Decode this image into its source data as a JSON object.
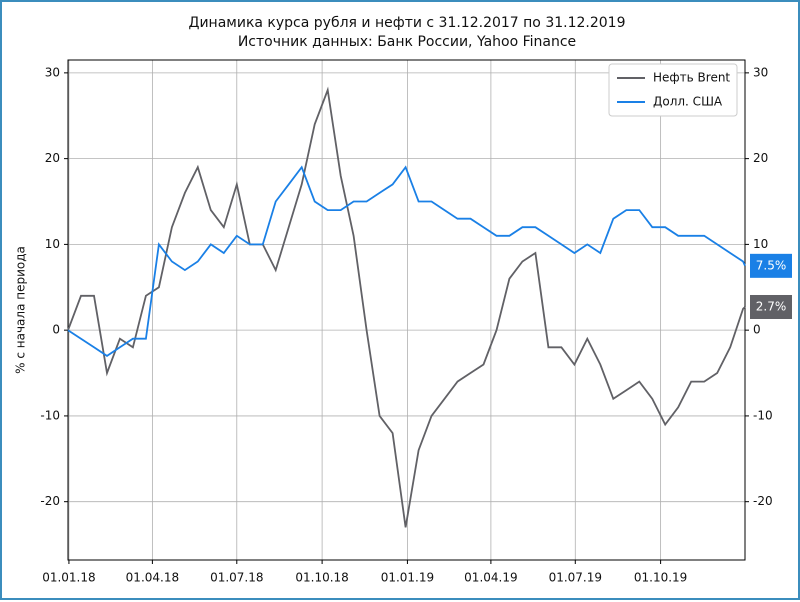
{
  "chart_data": {
    "type": "line",
    "title": "Динамика курса рубля и нефти с 31.12.2017 по 31.12.2019",
    "subtitle": "Источник данных: Банк России, Yahoo Finance",
    "y_label": "% с начала периода",
    "x": [
      "31.12.17",
      "14.01.18",
      "28.01.18",
      "11.02.18",
      "25.02.18",
      "11.03.18",
      "25.03.18",
      "08.04.18",
      "22.04.18",
      "06.05.18",
      "20.05.18",
      "03.06.18",
      "17.06.18",
      "01.07.18",
      "15.07.18",
      "29.07.18",
      "12.08.18",
      "26.08.18",
      "09.09.18",
      "23.09.18",
      "07.10.18",
      "21.10.18",
      "04.11.18",
      "18.11.18",
      "02.12.18",
      "16.12.18",
      "30.12.18",
      "13.01.19",
      "27.01.19",
      "10.02.19",
      "24.02.19",
      "10.03.19",
      "24.03.19",
      "07.04.19",
      "21.04.19",
      "05.05.19",
      "19.05.19",
      "02.06.19",
      "16.06.19",
      "30.06.19",
      "14.07.19",
      "28.07.19",
      "11.08.19",
      "25.08.19",
      "08.09.19",
      "22.09.19",
      "06.10.19",
      "20.10.19",
      "03.11.19",
      "17.11.19",
      "01.12.19",
      "15.12.19",
      "29.12.19",
      "31.12.19"
    ],
    "xlim": [
      "31.12.17",
      "31.12.19"
    ],
    "xticks": [
      "01.01.18",
      "01.04.18",
      "01.07.18",
      "01.10.18",
      "01.01.19",
      "01.04.19",
      "01.07.19",
      "01.10.19"
    ],
    "ylim": [
      -26.8,
      31.5
    ],
    "yticks": [
      -20,
      -10,
      0,
      10,
      20,
      30
    ],
    "y2lim": [
      -26.8,
      31.5
    ],
    "y2ticks": [
      -20,
      -10,
      0,
      10,
      20,
      30
    ],
    "grid": true,
    "legend": "upper right",
    "series": [
      {
        "name": "Нефть Brent",
        "color": "#616166",
        "end_label": "2.7%",
        "values": [
          0,
          4,
          4,
          -5,
          -1,
          -2,
          4,
          5,
          12,
          16,
          19,
          14,
          12,
          17,
          10,
          10,
          7,
          12,
          17,
          24,
          28,
          18,
          11,
          0,
          -10,
          -12,
          -23,
          -14,
          -10,
          -8,
          -6,
          -5,
          -4,
          0,
          6,
          8,
          9,
          -2,
          -2,
          -4,
          -1,
          -4,
          -8,
          -7,
          -6,
          -8,
          -11,
          -9,
          -6,
          -6,
          -5,
          -2,
          2.5,
          2.7
        ]
      },
      {
        "name": "Долл. США",
        "color": "#1a80e6",
        "end_label": "7.5%",
        "values": [
          0,
          -1,
          -2,
          -3,
          -2,
          -1,
          -1,
          10,
          8,
          7,
          8,
          10,
          9,
          11,
          10,
          10,
          15,
          17,
          19,
          15,
          14,
          14,
          15,
          15,
          16,
          17,
          19,
          15,
          15,
          14,
          13,
          13,
          12,
          11,
          11,
          12,
          12,
          11,
          10,
          9,
          10,
          9,
          13,
          14,
          14,
          12,
          12,
          11,
          11,
          11,
          10,
          9,
          8,
          7.5
        ]
      }
    ]
  }
}
